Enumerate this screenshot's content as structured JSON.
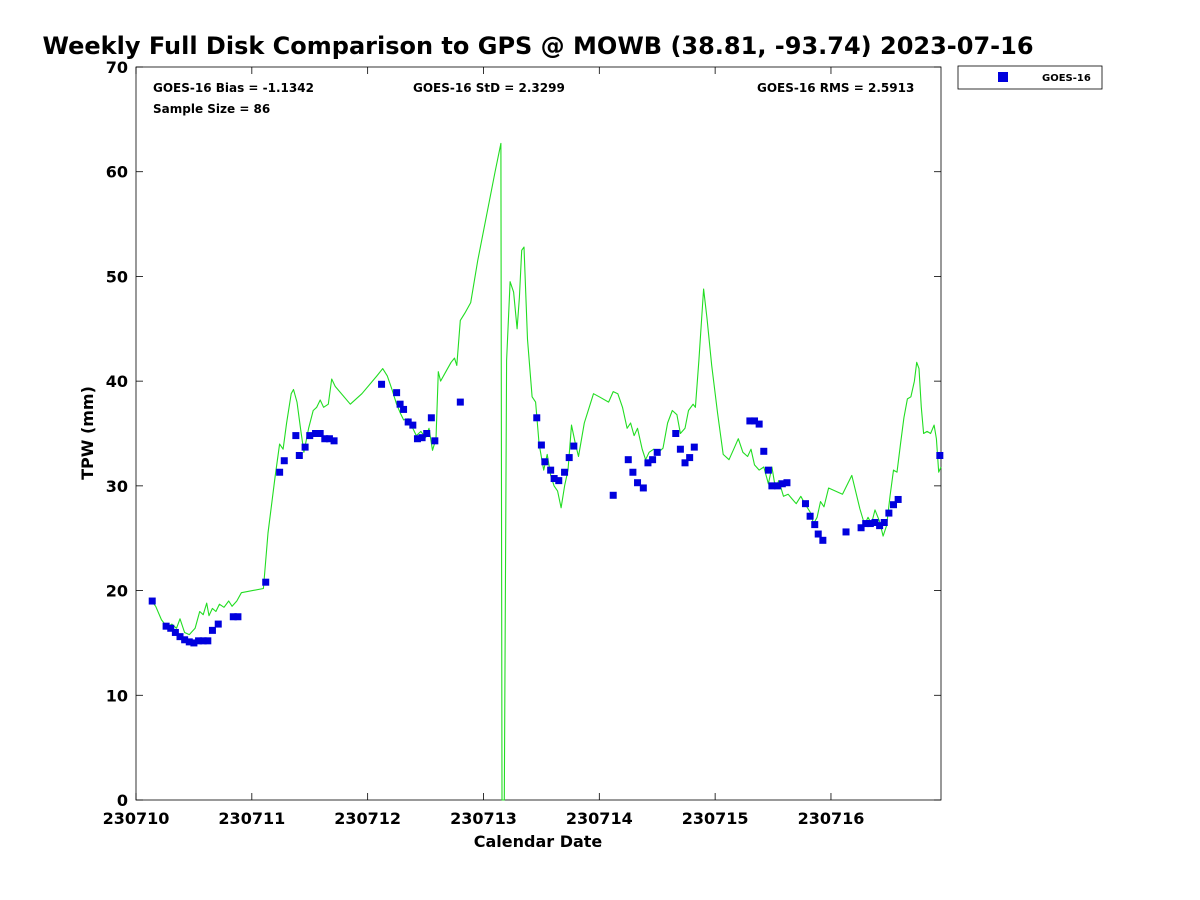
{
  "chart_data": {
    "type": "line",
    "title": "Weekly Full Disk Comparison to GPS @ MOWB (38.81, -93.74) 2023-07-16",
    "xlabel": "Calendar Date",
    "ylabel": "TPW (mm)",
    "xlim": [
      0,
      6.95
    ],
    "ylim": [
      0,
      70
    ],
    "x_unit": "days since 230710",
    "x_ticks": [
      {
        "value": 0,
        "label": "230710"
      },
      {
        "value": 1,
        "label": "230711"
      },
      {
        "value": 2,
        "label": "230712"
      },
      {
        "value": 3,
        "label": "230713"
      },
      {
        "value": 4,
        "label": "230714"
      },
      {
        "value": 5,
        "label": "230715"
      },
      {
        "value": 6,
        "label": "230716"
      }
    ],
    "y_ticks": [
      0,
      10,
      20,
      30,
      40,
      50,
      60,
      70
    ],
    "grid": false,
    "legend_position": "top-right",
    "stats": {
      "bias": "GOES-16 Bias = -1.1342",
      "std": "GOES-16 StD = 2.3299",
      "rms": "GOES-16 RMS = 2.5913",
      "sample": "Sample Size = 86"
    },
    "line_color": "#22dd22",
    "marker_color": "#0000dd",
    "series": [
      {
        "name": "GOES-16",
        "kind": "markers",
        "points": [
          [
            0.14,
            19.0
          ],
          [
            0.26,
            16.6
          ],
          [
            0.3,
            16.4
          ],
          [
            0.34,
            16.0
          ],
          [
            0.38,
            15.6
          ],
          [
            0.42,
            15.3
          ],
          [
            0.46,
            15.1
          ],
          [
            0.5,
            15.0
          ],
          [
            0.54,
            15.2
          ],
          [
            0.58,
            15.2
          ],
          [
            0.62,
            15.2
          ],
          [
            0.66,
            16.2
          ],
          [
            0.71,
            16.8
          ],
          [
            0.84,
            17.5
          ],
          [
            0.88,
            17.5
          ],
          [
            1.12,
            20.8
          ],
          [
            1.24,
            31.3
          ],
          [
            1.28,
            32.4
          ],
          [
            1.38,
            34.8
          ],
          [
            1.41,
            32.9
          ],
          [
            1.46,
            33.7
          ],
          [
            1.5,
            34.8
          ],
          [
            1.55,
            35.0
          ],
          [
            1.59,
            35.0
          ],
          [
            1.63,
            34.5
          ],
          [
            1.67,
            34.5
          ],
          [
            1.71,
            34.3
          ],
          [
            2.12,
            39.7
          ],
          [
            2.25,
            38.9
          ],
          [
            2.28,
            37.8
          ],
          [
            2.31,
            37.3
          ],
          [
            2.35,
            36.1
          ],
          [
            2.39,
            35.8
          ],
          [
            2.43,
            34.5
          ],
          [
            2.47,
            34.6
          ],
          [
            2.51,
            35.0
          ],
          [
            2.55,
            36.5
          ],
          [
            2.58,
            34.3
          ],
          [
            2.8,
            38.0
          ],
          [
            3.46,
            36.5
          ],
          [
            3.5,
            33.9
          ],
          [
            3.53,
            32.3
          ],
          [
            3.58,
            31.5
          ],
          [
            3.61,
            30.7
          ],
          [
            3.65,
            30.5
          ],
          [
            3.7,
            31.3
          ],
          [
            3.74,
            32.7
          ],
          [
            3.78,
            33.8
          ],
          [
            4.12,
            29.1
          ],
          [
            4.25,
            32.5
          ],
          [
            4.29,
            31.3
          ],
          [
            4.33,
            30.3
          ],
          [
            4.38,
            29.8
          ],
          [
            4.42,
            32.2
          ],
          [
            4.46,
            32.5
          ],
          [
            4.5,
            33.2
          ],
          [
            4.66,
            35.0
          ],
          [
            4.7,
            33.5
          ],
          [
            4.74,
            32.2
          ],
          [
            4.78,
            32.7
          ],
          [
            4.82,
            33.7
          ],
          [
            5.3,
            36.2
          ],
          [
            5.34,
            36.2
          ],
          [
            5.38,
            35.9
          ],
          [
            5.42,
            33.3
          ],
          [
            5.46,
            31.5
          ],
          [
            5.49,
            30.0
          ],
          [
            5.54,
            30.0
          ],
          [
            5.58,
            30.2
          ],
          [
            5.62,
            30.3
          ],
          [
            5.78,
            28.3
          ],
          [
            5.82,
            27.1
          ],
          [
            5.86,
            26.3
          ],
          [
            5.89,
            25.4
          ],
          [
            5.93,
            24.8
          ],
          [
            6.13,
            25.6
          ],
          [
            6.26,
            26.0
          ],
          [
            6.3,
            26.4
          ],
          [
            6.34,
            26.4
          ],
          [
            6.38,
            26.5
          ],
          [
            6.42,
            26.2
          ],
          [
            6.46,
            26.5
          ],
          [
            6.5,
            27.4
          ],
          [
            6.54,
            28.2
          ],
          [
            6.58,
            28.7
          ],
          [
            6.94,
            32.9
          ]
        ]
      },
      {
        "name": "",
        "kind": "line",
        "points": [
          [
            0.12,
            19.2
          ],
          [
            0.17,
            18.5
          ],
          [
            0.22,
            17.2
          ],
          [
            0.27,
            16.5
          ],
          [
            0.31,
            16.8
          ],
          [
            0.35,
            16.4
          ],
          [
            0.38,
            17.3
          ],
          [
            0.42,
            16.0
          ],
          [
            0.46,
            15.8
          ],
          [
            0.51,
            16.4
          ],
          [
            0.55,
            18.0
          ],
          [
            0.58,
            17.7
          ],
          [
            0.61,
            18.8
          ],
          [
            0.63,
            17.6
          ],
          [
            0.66,
            18.3
          ],
          [
            0.69,
            18.0
          ],
          [
            0.72,
            18.7
          ],
          [
            0.76,
            18.4
          ],
          [
            0.8,
            19.0
          ],
          [
            0.83,
            18.5
          ],
          [
            0.87,
            19.0
          ],
          [
            0.91,
            19.8
          ],
          [
            1.1,
            20.2
          ],
          [
            1.14,
            25.5
          ],
          [
            1.2,
            30.8
          ],
          [
            1.24,
            34.0
          ],
          [
            1.27,
            33.5
          ],
          [
            1.3,
            36.0
          ],
          [
            1.34,
            38.8
          ],
          [
            1.36,
            39.2
          ],
          [
            1.39,
            38.0
          ],
          [
            1.42,
            35.5
          ],
          [
            1.45,
            33.2
          ],
          [
            1.49,
            35.5
          ],
          [
            1.53,
            37.2
          ],
          [
            1.56,
            37.5
          ],
          [
            1.59,
            38.2
          ],
          [
            1.62,
            37.5
          ],
          [
            1.66,
            37.8
          ],
          [
            1.69,
            40.2
          ],
          [
            1.72,
            39.5
          ],
          [
            1.85,
            37.8
          ],
          [
            1.95,
            38.8
          ],
          [
            2.08,
            40.5
          ],
          [
            2.13,
            41.2
          ],
          [
            2.17,
            40.5
          ],
          [
            2.21,
            39.2
          ],
          [
            2.25,
            37.8
          ],
          [
            2.28,
            37.0
          ],
          [
            2.31,
            36.3
          ],
          [
            2.35,
            36.4
          ],
          [
            2.39,
            35.5
          ],
          [
            2.42,
            34.8
          ],
          [
            2.46,
            35.2
          ],
          [
            2.5,
            34.6
          ],
          [
            2.53,
            35.5
          ],
          [
            2.56,
            33.4
          ],
          [
            2.59,
            34.5
          ],
          [
            2.61,
            40.9
          ],
          [
            2.63,
            40.0
          ],
          [
            2.68,
            41.0
          ],
          [
            2.72,
            41.8
          ],
          [
            2.75,
            42.2
          ],
          [
            2.77,
            41.5
          ],
          [
            2.8,
            45.8
          ],
          [
            2.84,
            46.5
          ],
          [
            2.89,
            47.5
          ],
          [
            2.95,
            51.5
          ],
          [
            3.1,
            60.0
          ],
          [
            3.15,
            62.7
          ],
          [
            3.16,
            0.0
          ],
          [
            3.18,
            0.0
          ],
          [
            3.2,
            42.0
          ],
          [
            3.23,
            49.5
          ],
          [
            3.26,
            48.5
          ],
          [
            3.29,
            45.0
          ],
          [
            3.31,
            48.0
          ],
          [
            3.33,
            52.5
          ],
          [
            3.35,
            52.8
          ],
          [
            3.38,
            44.0
          ],
          [
            3.42,
            38.5
          ],
          [
            3.45,
            38.0
          ],
          [
            3.48,
            34.0
          ],
          [
            3.52,
            31.5
          ],
          [
            3.55,
            33.0
          ],
          [
            3.58,
            31.0
          ],
          [
            3.61,
            30.0
          ],
          [
            3.64,
            29.5
          ],
          [
            3.67,
            27.9
          ],
          [
            3.7,
            30.0
          ],
          [
            3.73,
            31.5
          ],
          [
            3.76,
            35.8
          ],
          [
            3.79,
            34.2
          ],
          [
            3.82,
            32.8
          ],
          [
            3.87,
            36.0
          ],
          [
            3.95,
            38.8
          ],
          [
            4.0,
            38.5
          ],
          [
            4.08,
            38.0
          ],
          [
            4.12,
            39.0
          ],
          [
            4.16,
            38.8
          ],
          [
            4.2,
            37.5
          ],
          [
            4.24,
            35.5
          ],
          [
            4.27,
            36.0
          ],
          [
            4.3,
            34.8
          ],
          [
            4.33,
            35.5
          ],
          [
            4.37,
            33.5
          ],
          [
            4.4,
            32.5
          ],
          [
            4.43,
            33.2
          ],
          [
            4.47,
            33.5
          ],
          [
            4.51,
            33.2
          ],
          [
            4.55,
            33.6
          ],
          [
            4.59,
            36.0
          ],
          [
            4.63,
            37.2
          ],
          [
            4.67,
            36.8
          ],
          [
            4.7,
            35.0
          ],
          [
            4.74,
            35.5
          ],
          [
            4.77,
            37.2
          ],
          [
            4.81,
            37.8
          ],
          [
            4.83,
            37.5
          ],
          [
            4.86,
            42.0
          ],
          [
            4.9,
            48.8
          ],
          [
            4.93,
            46.0
          ],
          [
            4.97,
            41.5
          ],
          [
            5.02,
            37.0
          ],
          [
            5.07,
            33.0
          ],
          [
            5.12,
            32.5
          ],
          [
            5.16,
            33.5
          ],
          [
            5.2,
            34.5
          ],
          [
            5.24,
            33.2
          ],
          [
            5.28,
            32.8
          ],
          [
            5.31,
            33.5
          ],
          [
            5.34,
            32.0
          ],
          [
            5.38,
            31.5
          ],
          [
            5.42,
            31.8
          ],
          [
            5.46,
            30.2
          ],
          [
            5.49,
            31.8
          ],
          [
            5.52,
            29.8
          ],
          [
            5.55,
            30.5
          ],
          [
            5.59,
            29.0
          ],
          [
            5.63,
            29.2
          ],
          [
            5.66,
            28.8
          ],
          [
            5.7,
            28.3
          ],
          [
            5.74,
            29.0
          ],
          [
            5.78,
            28.2
          ],
          [
            5.82,
            27.5
          ],
          [
            5.85,
            26.4
          ],
          [
            5.88,
            27.0
          ],
          [
            5.91,
            28.5
          ],
          [
            5.94,
            28.0
          ],
          [
            5.98,
            29.8
          ],
          [
            6.1,
            29.2
          ],
          [
            6.18,
            31.0
          ],
          [
            6.25,
            27.8
          ],
          [
            6.29,
            26.3
          ],
          [
            6.32,
            27.0
          ],
          [
            6.35,
            26.4
          ],
          [
            6.38,
            27.7
          ],
          [
            6.42,
            26.6
          ],
          [
            6.45,
            25.2
          ],
          [
            6.48,
            26.2
          ],
          [
            6.51,
            29.0
          ],
          [
            6.54,
            31.5
          ],
          [
            6.57,
            31.3
          ],
          [
            6.6,
            34.0
          ],
          [
            6.63,
            36.5
          ],
          [
            6.66,
            38.3
          ],
          [
            6.69,
            38.5
          ],
          [
            6.72,
            40.0
          ],
          [
            6.74,
            41.8
          ],
          [
            6.76,
            41.2
          ],
          [
            6.78,
            37.5
          ],
          [
            6.8,
            35.0
          ],
          [
            6.83,
            35.2
          ],
          [
            6.86,
            35.0
          ],
          [
            6.89,
            35.8
          ],
          [
            6.91,
            34.5
          ],
          [
            6.93,
            31.3
          ],
          [
            6.95,
            31.8
          ]
        ]
      }
    ]
  }
}
